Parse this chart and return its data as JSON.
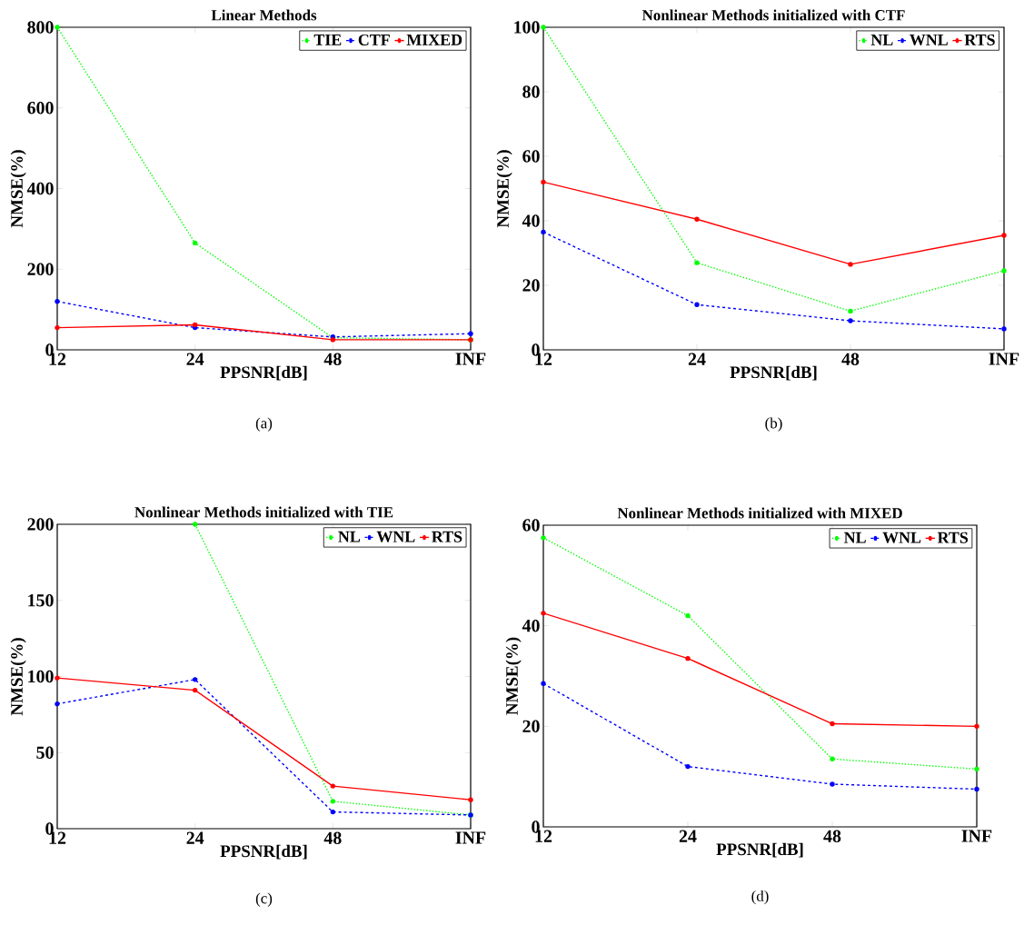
{
  "chart_data": [
    {
      "type": "line",
      "title": "Linear Methods",
      "xlabel": "PPSNR[dB]",
      "ylabel": "NMSE(%)",
      "categories": [
        "12",
        "24",
        "48",
        "INF"
      ],
      "ylim": [
        0,
        800
      ],
      "yticks": [
        0,
        200,
        400,
        600,
        800
      ],
      "legend": "top right",
      "marker": "circle",
      "annotations": [
        "(a)"
      ],
      "series": [
        {
          "name": "TIE",
          "color": "#00ff00",
          "line_style": "dotted",
          "values": [
            800,
            265,
            30,
            25
          ]
        },
        {
          "name": "CTF",
          "color": "#0000ff",
          "line_style": "dashed",
          "values": [
            120,
            55,
            32,
            40
          ]
        },
        {
          "name": "MIXED",
          "color": "#ff0000",
          "line_style": "solid",
          "values": [
            55,
            62,
            25,
            25
          ]
        }
      ]
    },
    {
      "type": "line",
      "title": "Nonlinear Methods initialized with CTF",
      "xlabel": "PPSNR[dB]",
      "ylabel": "NMSE(%)",
      "categories": [
        "12",
        "24",
        "48",
        "INF"
      ],
      "ylim": [
        0,
        100
      ],
      "yticks": [
        0,
        20,
        40,
        60,
        80,
        100
      ],
      "legend": "top right",
      "marker": "circle",
      "annotations": [
        "(b)"
      ],
      "series": [
        {
          "name": "NL",
          "color": "#00ff00",
          "line_style": "dotted",
          "values": [
            100,
            27,
            12,
            24.5
          ]
        },
        {
          "name": "WNL",
          "color": "#0000ff",
          "line_style": "dashed",
          "values": [
            36.5,
            14,
            9,
            6.5
          ]
        },
        {
          "name": "RTS",
          "color": "#ff0000",
          "line_style": "solid",
          "values": [
            52,
            40.5,
            26.5,
            35.5
          ]
        }
      ]
    },
    {
      "type": "line",
      "title": "Nonlinear Methods initialized with TIE",
      "xlabel": "PPSNR[dB]",
      "ylabel": "NMSE(%)",
      "categories": [
        "12",
        "24",
        "48",
        "INF"
      ],
      "ylim": [
        0,
        200
      ],
      "yticks": [
        0,
        50,
        100,
        150,
        200
      ],
      "legend": "top right",
      "marker": "circle",
      "annotations": [
        "(c)"
      ],
      "series": [
        {
          "name": "NL",
          "color": "#00ff00",
          "line_style": "dotted",
          "values": [
            null,
            200,
            18,
            9
          ]
        },
        {
          "name": "WNL",
          "color": "#0000ff",
          "line_style": "dashed",
          "values": [
            82,
            98,
            11,
            9
          ]
        },
        {
          "name": "RTS",
          "color": "#ff0000",
          "line_style": "solid",
          "values": [
            99,
            91,
            28,
            19
          ]
        }
      ]
    },
    {
      "type": "line",
      "title": "Nonlinear Methods initialized with MIXED",
      "xlabel": "PPSNR[dB]",
      "ylabel": "NMSE(%)",
      "categories": [
        "12",
        "24",
        "48",
        "INF"
      ],
      "ylim": [
        0,
        60
      ],
      "yticks": [
        0,
        20,
        40,
        60
      ],
      "legend": "top right",
      "marker": "circle",
      "annotations": [
        "(d)"
      ],
      "series": [
        {
          "name": "NL",
          "color": "#00ff00",
          "line_style": "dotted",
          "values": [
            57.5,
            42,
            13.5,
            11.5
          ]
        },
        {
          "name": "WNL",
          "color": "#0000ff",
          "line_style": "dashed",
          "values": [
            28.5,
            12,
            8.5,
            7.5
          ]
        },
        {
          "name": "RTS",
          "color": "#ff0000",
          "line_style": "solid",
          "values": [
            42.5,
            33.5,
            20.5,
            20
          ]
        }
      ]
    }
  ]
}
